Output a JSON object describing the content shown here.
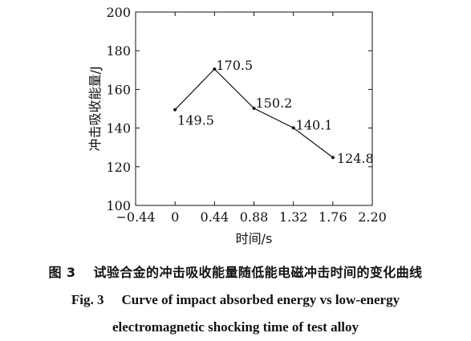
{
  "chart_data": {
    "type": "line",
    "x": [
      0,
      0.44,
      0.88,
      1.32,
      1.76
    ],
    "values": [
      149.5,
      170.5,
      150.2,
      140.1,
      124.8
    ],
    "point_labels": [
      "149.5",
      "170.5",
      "150.2",
      "140.1",
      "124.8"
    ],
    "xlabel": "时间/s",
    "ylabel": "冲击吸收能量/J",
    "xlim": [
      -0.44,
      2.2
    ],
    "ylim": [
      100,
      200
    ],
    "x_ticks": [
      -0.44,
      0,
      0.44,
      0.88,
      1.32,
      1.76,
      2.2
    ],
    "x_tick_labels": [
      "−0.44",
      "0",
      "0.44",
      "0.88",
      "1.32",
      "1.76",
      "2.20"
    ],
    "y_ticks": [
      100,
      120,
      140,
      160,
      180,
      200
    ],
    "y_tick_labels": [
      "100",
      "120",
      "140",
      "160",
      "180",
      "200"
    ],
    "grid": false,
    "line_color": "#111111"
  },
  "caption": {
    "cn_number": "图 3",
    "cn_text": "试验合金的冲击吸收能量随低能电磁冲击时间的变化曲线",
    "en_number": "Fig. 3",
    "en_line1": "Curve of impact absorbed energy vs low-energy",
    "en_line2": "electromagnetic shocking time of test alloy"
  }
}
